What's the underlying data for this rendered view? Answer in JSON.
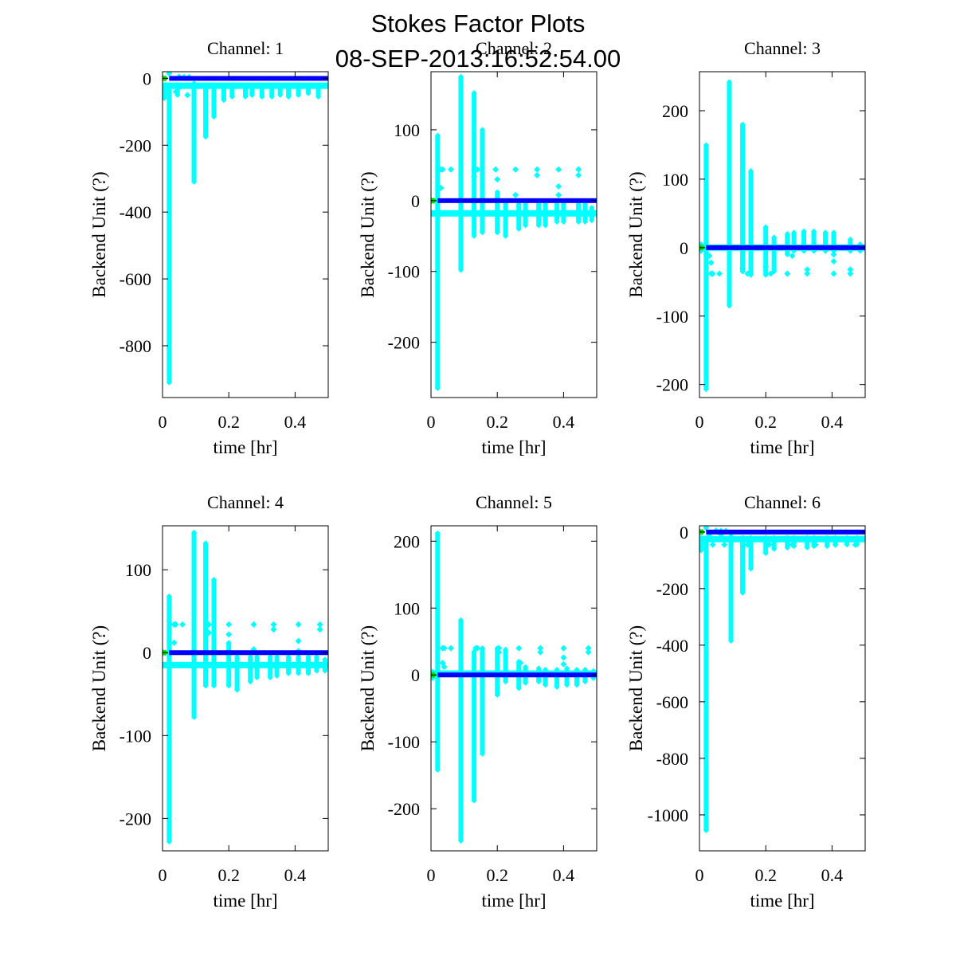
{
  "figure": {
    "title_line1": "Stokes Factor Plots",
    "title_line2": "08-SEP-2013:16:52:54.00"
  },
  "colors": {
    "scatter": "#00ffff",
    "baseline": "#0000ff",
    "start_marker": "#00dd00",
    "axes": "#000000"
  },
  "chart_data": [
    {
      "type": "scatter",
      "title": "Channel: 1",
      "xlabel": "time [hr]",
      "ylabel": "Backend Unit (?)",
      "xlim": [
        0,
        0.5
      ],
      "ylim": [
        -955,
        20
      ],
      "xticks": [
        0,
        0.2,
        0.4
      ],
      "xtick_labels": [
        "0",
        "0.2",
        "0.4"
      ],
      "yticks": [
        0,
        -200,
        -400,
        -600,
        -800
      ],
      "ytick_labels": [
        "0",
        "-200",
        "-400",
        "-600",
        "-800"
      ],
      "grid": false,
      "baseline": 0,
      "cyan_band": -22,
      "spikes": [
        [
          0.005,
          -60,
          -20
        ],
        [
          0.02,
          -910,
          -20
        ],
        [
          0.045,
          -50,
          -20
        ],
        [
          0.095,
          -310,
          -15
        ],
        [
          0.13,
          -175,
          -20
        ],
        [
          0.155,
          -115,
          -20
        ],
        [
          0.185,
          -65,
          -20
        ],
        [
          0.21,
          -55,
          -20
        ],
        [
          0.25,
          -55,
          -20
        ],
        [
          0.27,
          -50,
          -20
        ],
        [
          0.3,
          -55,
          -20
        ],
        [
          0.33,
          -55,
          -20
        ],
        [
          0.355,
          -50,
          -20
        ],
        [
          0.38,
          -55,
          -20
        ],
        [
          0.41,
          -50,
          -20
        ],
        [
          0.44,
          -45,
          -20
        ],
        [
          0.47,
          -55,
          -20
        ]
      ],
      "outliers": [
        [
          0.04,
          -40
        ],
        [
          0.055,
          -25
        ],
        [
          0.075,
          -50
        ],
        [
          0.02,
          15
        ],
        [
          0.05,
          5
        ],
        [
          0.065,
          4
        ],
        [
          0.08,
          4
        ]
      ]
    },
    {
      "type": "scatter",
      "title": "Channel: 2",
      "xlabel": "time [hr]",
      "ylabel": "Backend Unit (?)",
      "xlim": [
        0,
        0.5
      ],
      "ylim": [
        -278,
        182
      ],
      "xticks": [
        0,
        0.2,
        0.4
      ],
      "xtick_labels": [
        "0",
        "0.2",
        "0.4"
      ],
      "yticks": [
        100,
        0,
        -100,
        -200
      ],
      "ytick_labels": [
        "100",
        "0",
        "-100",
        "-200"
      ],
      "grid": false,
      "baseline": 0,
      "cyan_band": -18,
      "spikes": [
        [
          0.02,
          -265,
          92
        ],
        [
          0.09,
          -98,
          175
        ],
        [
          0.13,
          -50,
          152
        ],
        [
          0.155,
          -45,
          100
        ],
        [
          0.2,
          -45,
          12
        ],
        [
          0.225,
          -50,
          -5
        ],
        [
          0.265,
          -40,
          -5
        ],
        [
          0.285,
          -35,
          -5
        ],
        [
          0.325,
          -35,
          -5
        ],
        [
          0.345,
          -35,
          -5
        ],
        [
          0.38,
          -30,
          -5
        ],
        [
          0.4,
          -30,
          -5
        ],
        [
          0.445,
          -30,
          -5
        ],
        [
          0.465,
          -30,
          -5
        ],
        [
          0.485,
          -28,
          -10
        ]
      ],
      "outliers": [
        [
          0.03,
          44
        ],
        [
          0.035,
          44
        ],
        [
          0.06,
          44
        ],
        [
          0.13,
          44
        ],
        [
          0.14,
          44
        ],
        [
          0.195,
          44
        ],
        [
          0.255,
          44
        ],
        [
          0.32,
          44
        ],
        [
          0.385,
          44
        ],
        [
          0.445,
          44
        ],
        [
          0.32,
          36
        ],
        [
          0.445,
          36
        ],
        [
          0.03,
          18
        ],
        [
          0.2,
          30
        ],
        [
          0.385,
          20
        ],
        [
          0.13,
          34
        ],
        [
          0.255,
          8
        ],
        [
          0.385,
          8
        ]
      ]
    },
    {
      "type": "scatter",
      "title": "Channel: 3",
      "xlabel": "time [hr]",
      "ylabel": "Backend Unit (?)",
      "xlim": [
        0,
        0.5
      ],
      "ylim": [
        -219,
        257
      ],
      "xticks": [
        0,
        0.2,
        0.4
      ],
      "xtick_labels": [
        "0",
        "0.2",
        "0.4"
      ],
      "yticks": [
        200,
        100,
        0,
        -100,
        -200
      ],
      "ytick_labels": [
        "200",
        "100",
        "0",
        "-100",
        "-200"
      ],
      "grid": false,
      "baseline": 0,
      "cyan_band": 0,
      "spikes": [
        [
          0.005,
          -5,
          5
        ],
        [
          0.02,
          -207,
          150
        ],
        [
          0.09,
          -85,
          242
        ],
        [
          0.13,
          -35,
          180
        ],
        [
          0.155,
          -40,
          112
        ],
        [
          0.2,
          -40,
          30
        ],
        [
          0.225,
          -35,
          15
        ],
        [
          0.265,
          -10,
          20
        ],
        [
          0.285,
          -5,
          22
        ],
        [
          0.315,
          -5,
          24
        ],
        [
          0.345,
          -5,
          24
        ],
        [
          0.38,
          -5,
          22
        ],
        [
          0.405,
          -5,
          22
        ],
        [
          0.455,
          -5,
          12
        ],
        [
          0.485,
          -5,
          5
        ]
      ],
      "outliers": [
        [
          0.035,
          -38
        ],
        [
          0.04,
          -38
        ],
        [
          0.06,
          -38
        ],
        [
          0.145,
          -38
        ],
        [
          0.215,
          -38
        ],
        [
          0.265,
          -38
        ],
        [
          0.325,
          -38
        ],
        [
          0.405,
          -38
        ],
        [
          0.455,
          -38
        ],
        [
          0.455,
          -32
        ],
        [
          0.325,
          -32
        ],
        [
          0.03,
          -12
        ],
        [
          0.035,
          -22
        ],
        [
          0.405,
          -10
        ],
        [
          0.405,
          -20
        ],
        [
          0.13,
          -30
        ],
        [
          0.2,
          -28
        ],
        [
          0.28,
          -12
        ]
      ]
    },
    {
      "type": "scatter",
      "title": "Channel: 4",
      "xlabel": "time [hr]",
      "ylabel": "Backend Unit (?)",
      "xlim": [
        0,
        0.5
      ],
      "ylim": [
        -239,
        153
      ],
      "xticks": [
        0,
        0.2,
        0.4
      ],
      "xtick_labels": [
        "0",
        "0.2",
        "0.4"
      ],
      "yticks": [
        100,
        0,
        -100,
        -200
      ],
      "ytick_labels": [
        "100",
        "0",
        "-100",
        "-200"
      ],
      "grid": false,
      "baseline": 0,
      "cyan_band": -15,
      "spikes": [
        [
          0.02,
          -228,
          68
        ],
        [
          0.095,
          -78,
          145
        ],
        [
          0.13,
          -40,
          132
        ],
        [
          0.155,
          -40,
          88
        ],
        [
          0.2,
          -40,
          12
        ],
        [
          0.225,
          -45,
          -5
        ],
        [
          0.265,
          -35,
          -5
        ],
        [
          0.285,
          -30,
          -5
        ],
        [
          0.325,
          -30,
          -5
        ],
        [
          0.345,
          -28,
          -5
        ],
        [
          0.38,
          -25,
          -5
        ],
        [
          0.41,
          -25,
          -5
        ],
        [
          0.44,
          -25,
          -5
        ],
        [
          0.465,
          -22,
          -5
        ],
        [
          0.49,
          -22,
          -8
        ]
      ],
      "outliers": [
        [
          0.035,
          34
        ],
        [
          0.04,
          34
        ],
        [
          0.06,
          34
        ],
        [
          0.135,
          34
        ],
        [
          0.14,
          34
        ],
        [
          0.2,
          34
        ],
        [
          0.275,
          34
        ],
        [
          0.335,
          34
        ],
        [
          0.41,
          34
        ],
        [
          0.475,
          34
        ],
        [
          0.335,
          28
        ],
        [
          0.475,
          28
        ],
        [
          0.14,
          24
        ],
        [
          0.035,
          12
        ],
        [
          0.41,
          14
        ],
        [
          0.2,
          22
        ],
        [
          0.275,
          4
        ],
        [
          0.41,
          2
        ]
      ]
    },
    {
      "type": "scatter",
      "title": "Channel: 5",
      "xlabel": "time [hr]",
      "ylabel": "Backend Unit (?)",
      "xlim": [
        0,
        0.5
      ],
      "ylim": [
        -263,
        223
      ],
      "xticks": [
        0,
        0.2,
        0.4
      ],
      "xtick_labels": [
        "0",
        "0.2",
        "0.4"
      ],
      "yticks": [
        200,
        100,
        0,
        -100,
        -200
      ],
      "ytick_labels": [
        "200",
        "100",
        "0",
        "-100",
        "-200"
      ],
      "grid": false,
      "baseline": 0,
      "cyan_band": 2,
      "spikes": [
        [
          0.005,
          -5,
          5
        ],
        [
          0.02,
          -142,
          212
        ],
        [
          0.09,
          -248,
          82
        ],
        [
          0.13,
          -188,
          35
        ],
        [
          0.155,
          -118,
          40
        ],
        [
          0.2,
          -30,
          40
        ],
        [
          0.225,
          -10,
          38
        ],
        [
          0.265,
          -20,
          20
        ],
        [
          0.285,
          -12,
          12
        ],
        [
          0.325,
          -10,
          10
        ],
        [
          0.345,
          -15,
          8
        ],
        [
          0.38,
          -18,
          8
        ],
        [
          0.41,
          -15,
          10
        ],
        [
          0.44,
          -15,
          8
        ],
        [
          0.465,
          -10,
          8
        ],
        [
          0.49,
          -5,
          6
        ]
      ],
      "outliers": [
        [
          0.035,
          40
        ],
        [
          0.04,
          40
        ],
        [
          0.06,
          40
        ],
        [
          0.135,
          40
        ],
        [
          0.14,
          40
        ],
        [
          0.205,
          40
        ],
        [
          0.265,
          40
        ],
        [
          0.33,
          40
        ],
        [
          0.4,
          40
        ],
        [
          0.475,
          40
        ],
        [
          0.33,
          34
        ],
        [
          0.475,
          34
        ],
        [
          0.205,
          34
        ],
        [
          0.035,
          18
        ],
        [
          0.04,
          12
        ],
        [
          0.4,
          16
        ],
        [
          0.4,
          26
        ],
        [
          0.27,
          18
        ]
      ]
    },
    {
      "type": "scatter",
      "title": "Channel: 6",
      "xlabel": "time [hr]",
      "ylabel": "Backend Unit (?)",
      "xlim": [
        0,
        0.5
      ],
      "ylim": [
        -1127,
        22
      ],
      "xticks": [
        0,
        0.2,
        0.4
      ],
      "xtick_labels": [
        "0",
        "0.2",
        "0.4"
      ],
      "yticks": [
        0,
        -200,
        -400,
        -600,
        -800,
        -1000
      ],
      "ytick_labels": [
        "0",
        "-200",
        "-400",
        "-600",
        "-800",
        "-1000"
      ],
      "grid": false,
      "baseline": 0,
      "cyan_band": -25,
      "spikes": [
        [
          0.005,
          -65,
          -20
        ],
        [
          0.02,
          -1055,
          -20
        ],
        [
          0.095,
          -385,
          -15
        ],
        [
          0.13,
          -215,
          -20
        ],
        [
          0.155,
          -130,
          -20
        ],
        [
          0.2,
          -75,
          -20
        ],
        [
          0.225,
          -60,
          -20
        ],
        [
          0.265,
          -55,
          -20
        ],
        [
          0.285,
          -50,
          -20
        ],
        [
          0.325,
          -55,
          -20
        ],
        [
          0.345,
          -50,
          -20
        ],
        [
          0.385,
          -50,
          -20
        ],
        [
          0.41,
          -45,
          -20
        ],
        [
          0.445,
          -45,
          -20
        ],
        [
          0.475,
          -45,
          -20
        ]
      ],
      "outliers": [
        [
          0.04,
          -45
        ],
        [
          0.055,
          -25
        ],
        [
          0.075,
          -45
        ],
        [
          0.03,
          -15
        ],
        [
          0.065,
          -8
        ],
        [
          0.02,
          15
        ],
        [
          0.05,
          5
        ],
        [
          0.065,
          4
        ],
        [
          0.08,
          4
        ],
        [
          0.145,
          -45
        ],
        [
          0.21,
          -45
        ],
        [
          0.28,
          -45
        ],
        [
          0.35,
          -45
        ],
        [
          0.41,
          -45
        ],
        [
          0.47,
          -45
        ]
      ]
    }
  ]
}
